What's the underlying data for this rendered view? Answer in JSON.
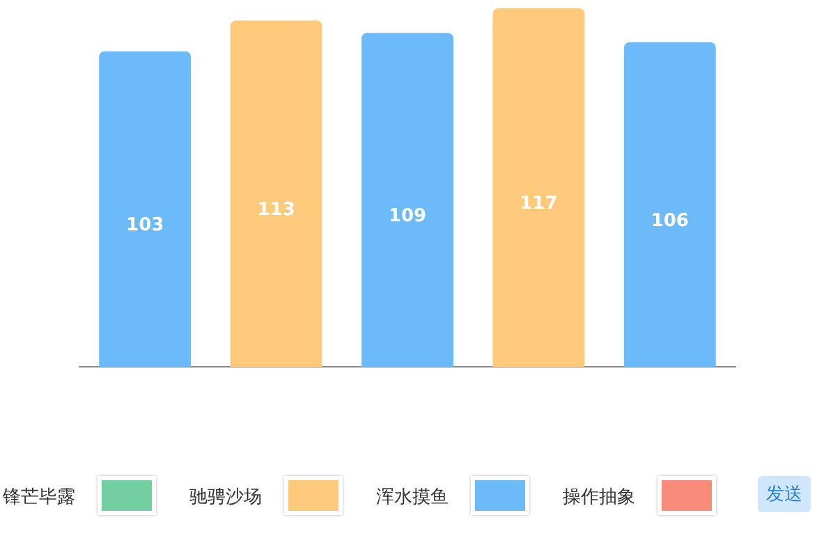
{
  "chart_data": {
    "type": "bar",
    "categories": [
      null,
      null,
      null,
      null,
      null
    ],
    "values": [
      103,
      113,
      109,
      117,
      106
    ],
    "colors": [
      "#6cbafa",
      "#fdc97b",
      "#6cbafa",
      "#fdc97b",
      "#6cbafa"
    ],
    "data_labels": true,
    "grid": false,
    "legend": false,
    "annotations": [
      "锋芒毕露",
      "驰骋沙场",
      "浑水摸鱼",
      "操作抽象",
      "发送"
    ]
  }
}
